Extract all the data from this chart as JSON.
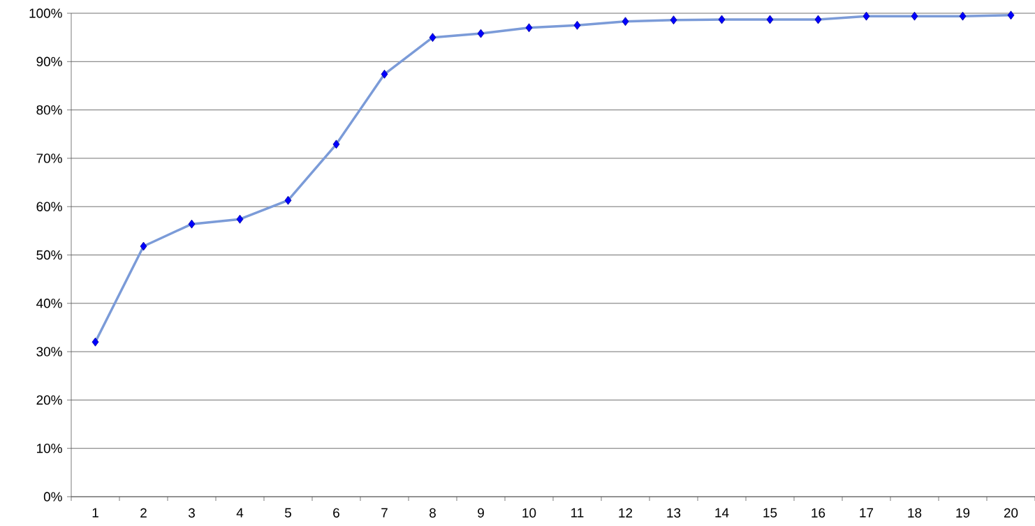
{
  "chart_data": {
    "type": "line",
    "categories": [
      "1",
      "2",
      "3",
      "4",
      "5",
      "6",
      "7",
      "8",
      "9",
      "10",
      "11",
      "12",
      "13",
      "14",
      "15",
      "16",
      "17",
      "18",
      "19",
      "20"
    ],
    "values": [
      32,
      51.8,
      56.4,
      57.4,
      61.3,
      72.9,
      87.4,
      95,
      95.8,
      97,
      97.5,
      98.3,
      98.6,
      98.7,
      98.7,
      98.7,
      99.4,
      99.4,
      99.4,
      99.6
    ],
    "color": "#7b9bd8",
    "marker": "diamond",
    "grid": "y",
    "ylim": [
      0,
      100
    ],
    "yticks": [
      {
        "value": 0,
        "label": "0%"
      },
      {
        "value": 10,
        "label": "10%"
      },
      {
        "value": 20,
        "label": "20%"
      },
      {
        "value": 30,
        "label": "30%"
      },
      {
        "value": 40,
        "label": "40%"
      },
      {
        "value": 50,
        "label": "50%"
      },
      {
        "value": 60,
        "label": "60%"
      },
      {
        "value": 70,
        "label": "70%"
      },
      {
        "value": 80,
        "label": "80%"
      },
      {
        "value": 90,
        "label": "90%"
      },
      {
        "value": 100,
        "label": "100%"
      }
    ]
  }
}
